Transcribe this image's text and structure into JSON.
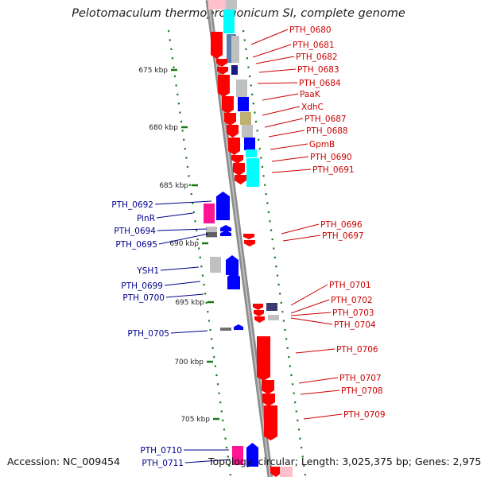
{
  "title": "Pelotomaculum thermopropionicum SI, complete genome",
  "footer": {
    "accession": "Accession: NC_009454",
    "summary": "Topology: circular; Length: 3,025,375 bp; Genes: 2,975"
  },
  "colors": {
    "backbone": "#8c8c8c",
    "tick": "#1a7a1a",
    "forward_label": "#cc0000",
    "reverse_label": "#00008c",
    "red_gene": "#ff0000",
    "blue_gene": "#0000ff",
    "cyan_gene": "#00ffff",
    "magenta_gene": "#ff1493",
    "gray_gene": "#c0c0c0",
    "navy_gene": "#1a1a80",
    "olive_gene": "#c0b070",
    "steel_gene": "#5a80b0"
  },
  "kbp_labels": [
    "675 kbp",
    "680 kbp",
    "685 kbp",
    "690 kbp",
    "695 kbp",
    "700 kbp",
    "705 kbp"
  ],
  "forward_genes": [
    "PTH_0680",
    "PTH_0681",
    "PTH_0682",
    "PTH_0683",
    "PTH_0684",
    "PaaK",
    "XdhC",
    "PTH_0687",
    "PTH_0688",
    "GpmB",
    "PTH_0690",
    "PTH_0691",
    "PTH_0696",
    "PTH_0697",
    "PTH_0701",
    "PTH_0702",
    "PTH_0703",
    "PTH_0704",
    "PTH_0706",
    "PTH_0707",
    "PTH_0708",
    "PTH_0709"
  ],
  "reverse_genes": [
    "PTH_0692",
    "PinR",
    "PTH_0694",
    "PTH_0695",
    "YSH1",
    "PTH_0699",
    "PTH_0700",
    "PTH_0705",
    "PTH_0710",
    "PTH_0711"
  ]
}
